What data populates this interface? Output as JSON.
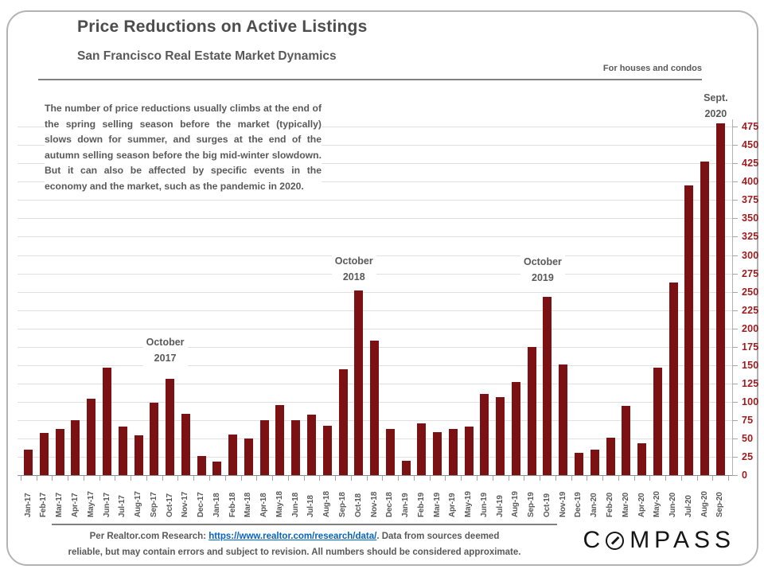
{
  "page": {
    "title": "Price Reductions on Active Listings",
    "subtitle": "San Francisco Real Estate Market Dynamics",
    "tagline": "For houses and condos"
  },
  "commentary": "The number of price reductions usually climbs at the end of the spring selling season before the market (typically) slows down for summer, and surges at the end of the autumn selling season before the big mid-winter slowdown. But it can also be affected by specific events in the economy and the market, such as the pandemic in 2020.",
  "chart_data": {
    "type": "bar",
    "title": "Price Reductions on Active Listings",
    "subtitle": "San Francisco Real Estate Market Dynamics",
    "categories": [
      "Jan-17",
      "Feb-17",
      "Mar-17",
      "Apr-17",
      "May-17",
      "Jun-17",
      "Jul-17",
      "Aug-17",
      "Sep-17",
      "Oct-17",
      "Nov-17",
      "Dec-17",
      "Jan-18",
      "Feb-18",
      "Mar-18",
      "Apr-18",
      "May-18",
      "Jun-18",
      "Jul-18",
      "Aug-18",
      "Sep-18",
      "Oct-18",
      "Nov-18",
      "Dec-18",
      "Jan-19",
      "Feb-19",
      "Mar-19",
      "Apr-19",
      "May-19",
      "Jun-19",
      "Jul-19",
      "Aug-19",
      "Sep-19",
      "Oct-19",
      "Nov-19",
      "Dec-19",
      "Jan-20",
      "Feb-20",
      "Mar-20",
      "Apr-20",
      "May-20",
      "Jun-20",
      "Jul-20",
      "Aug-20",
      "Sep-20"
    ],
    "values": [
      35,
      58,
      63,
      75,
      104,
      147,
      66,
      54,
      99,
      131,
      84,
      26,
      18,
      55,
      50,
      75,
      95,
      75,
      82,
      67,
      144,
      252,
      183,
      63,
      19,
      70,
      59,
      63,
      66,
      111,
      106,
      127,
      175,
      243,
      151,
      30,
      35,
      51,
      94,
      43,
      147,
      263,
      395,
      428,
      480
    ],
    "xlabel": "",
    "ylabel": "",
    "ylim": [
      0,
      485
    ],
    "y_ticks": [
      0,
      25,
      50,
      75,
      100,
      125,
      150,
      175,
      200,
      225,
      250,
      275,
      300,
      325,
      350,
      375,
      400,
      425,
      450,
      475
    ],
    "grid": true,
    "legend": "none",
    "bar_color": "#7b1113",
    "y_tick_color": "#9d1a1d",
    "annotations": [
      {
        "line1": "October",
        "line2": "2017",
        "month": "Oct-17"
      },
      {
        "line1": "October",
        "line2": "2018",
        "month": "Oct-18"
      },
      {
        "line1": "October",
        "line2": "2019",
        "month": "Oct-19"
      },
      {
        "line1": "Sept.",
        "line2": "2020",
        "month": "Sep-20"
      }
    ]
  },
  "footer": {
    "prefix": "Per Realtor.com Research: ",
    "link": "https://www.realtor.com/research/data/",
    "suffix": ". Data from sources deemed",
    "line2": "reliable, but may contain errors and subject to revision. All numbers should be considered approximate.",
    "logo_c": "C",
    "logo_rest": "MPASS"
  }
}
